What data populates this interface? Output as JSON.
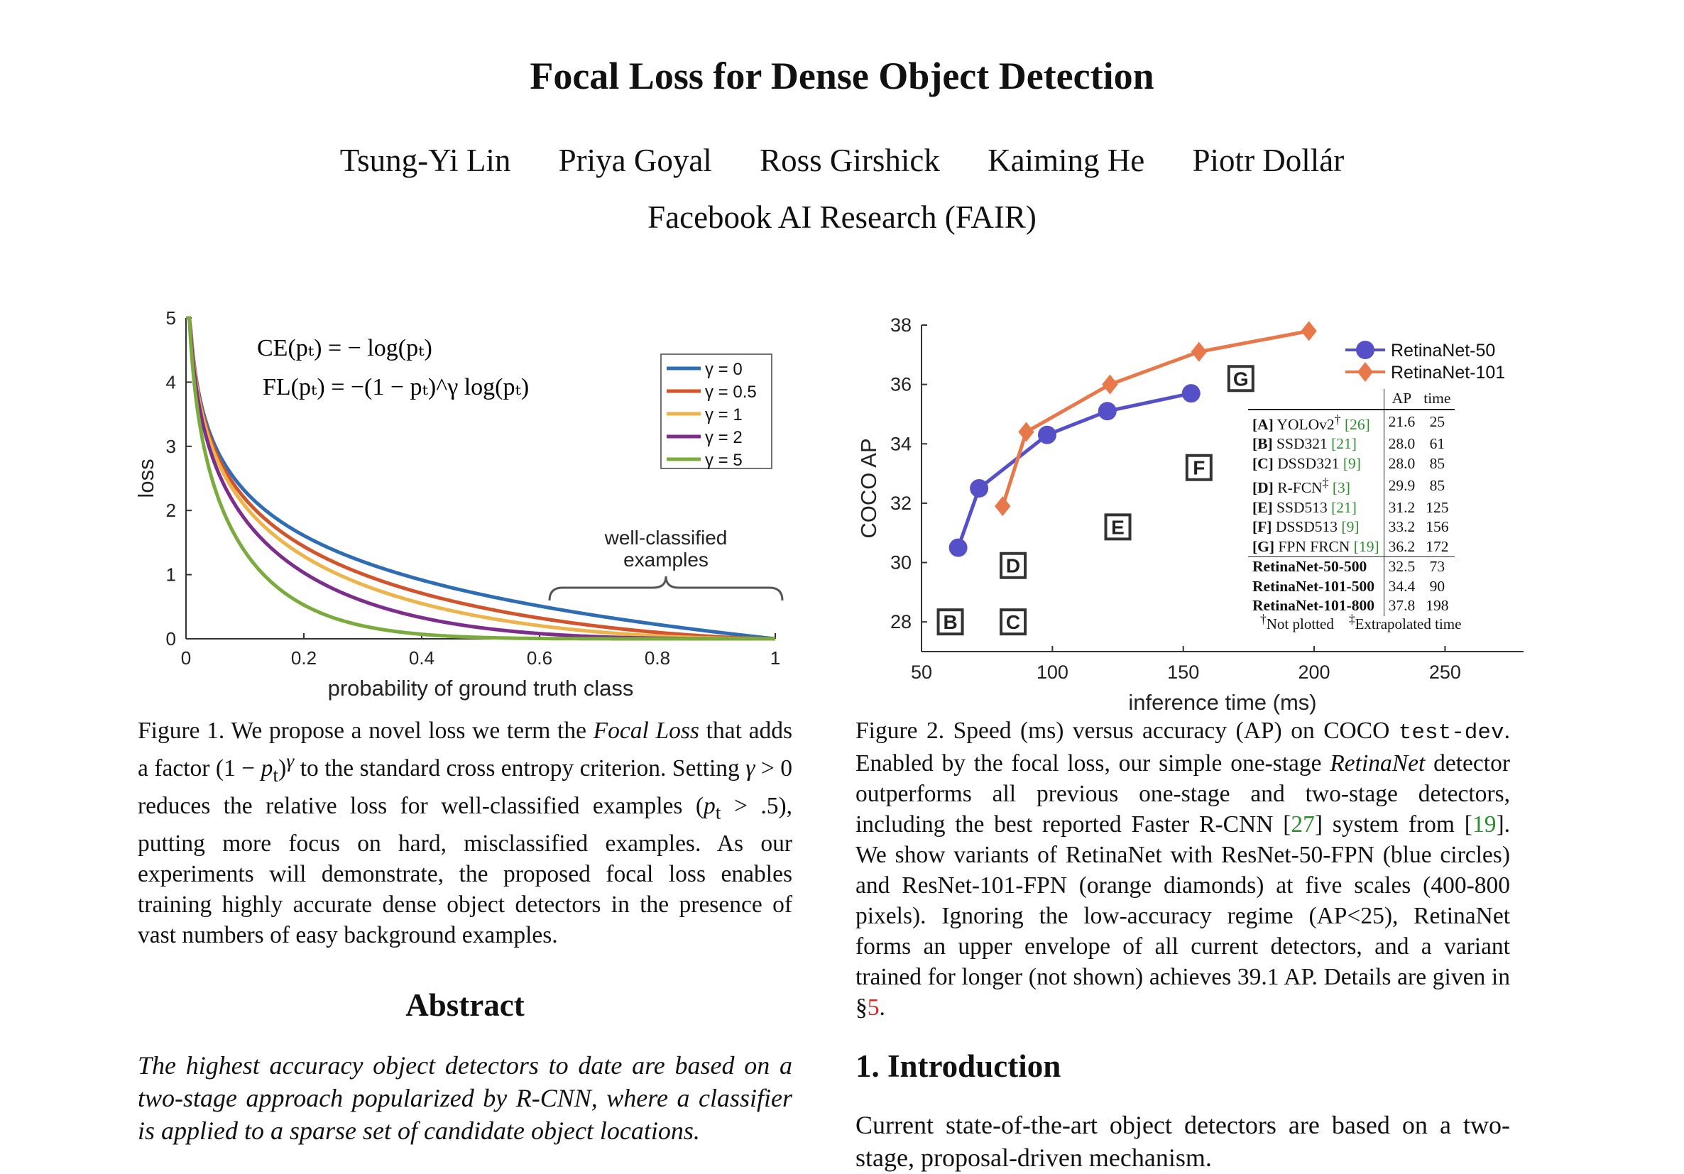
{
  "title": "Focal Loss for Dense Object Detection",
  "authors": [
    "Tsung-Yi Lin",
    "Priya Goyal",
    "Ross Girshick",
    "Kaiming He",
    "Piotr Dollár"
  ],
  "affiliation": "Facebook AI Research (FAIR)",
  "figure1": {
    "eq_ce": "CE(pₜ) = − log(pₜ)",
    "eq_fl": "FL(pₜ) = −(1 − pₜ)^γ log(pₜ)",
    "annotation_line1": "well-classified",
    "annotation_line2": "examples",
    "caption_html": "Figure 1. We propose a novel loss we term the <i>Focal Loss</i> that adds a factor (1 − <i>p</i><sub>t</sub>)<sup><i>γ</i></sup> to the standard cross entropy criterion. Setting <i>γ</i> &gt; 0 reduces the relative loss for well-classified examples (<i>p</i><sub>t</sub> &gt; .5), putting more focus on hard, misclassified examples. As our experiments will demonstrate, the proposed focal loss enables training highly accurate dense object detectors in the presence of vast numbers of easy background examples."
  },
  "figure2": {
    "caption_html": "Figure 2. Speed (ms) versus accuracy (AP) on COCO <span class=\"mono\">test-dev</span>. Enabled by the focal loss, our simple one-stage <i>RetinaNet</i> detector outperforms all previous one-stage and two-stage detectors, including the best reported Faster R-CNN [<span class=\"ref-g\">27</span>] system from [<span class=\"ref-g\">19</span>]. We show variants of RetinaNet with ResNet-50-FPN (blue circles) and ResNet-101-FPN (orange diamonds) at five scales (400-800 pixels). Ignoring the low-accuracy regime (AP&lt;25), RetinaNet forms an upper envelope of all current detectors, and a variant trained for longer (not shown) achieves 39.1 AP. Details are given in §<span class=\"ref-r\">5</span>.",
    "table_header": [
      "AP",
      "time"
    ],
    "table_rows": [
      {
        "label": "[A] YOLOv2",
        "mark": "†",
        "ref": "[26]",
        "ap": "21.6",
        "time": "25"
      },
      {
        "label": "[B] SSD321",
        "mark": "",
        "ref": "[21]",
        "ap": "28.0",
        "time": "61"
      },
      {
        "label": "[C] DSSD321",
        "mark": "",
        "ref": "[9]",
        "ap": "28.0",
        "time": "85"
      },
      {
        "label": "[D] R-FCN",
        "mark": "‡",
        "ref": "[3]",
        "ap": "29.9",
        "time": "85"
      },
      {
        "label": "[E] SSD513",
        "mark": "",
        "ref": "[21]",
        "ap": "31.2",
        "time": "125"
      },
      {
        "label": "[F] DSSD513",
        "mark": "",
        "ref": "[9]",
        "ap": "33.2",
        "time": "156"
      },
      {
        "label": "[G] FPN FRCN",
        "mark": "",
        "ref": "[19]",
        "ap": "36.2",
        "time": "172"
      }
    ],
    "retina_rows": [
      {
        "label": "RetinaNet-50-500",
        "ap": "32.5",
        "time": "73"
      },
      {
        "label": "RetinaNet-101-500",
        "ap": "34.4",
        "time": "90"
      },
      {
        "label": "RetinaNet-101-800",
        "ap": "37.8",
        "time": "198"
      }
    ],
    "foot_not_plotted": "Not plotted",
    "foot_extrapolated": "Extrapolated time"
  },
  "abstract_heading": "Abstract",
  "abstract_text": "The highest accuracy object detectors to date are based on a two-stage approach popularized by R-CNN, where a classifier is applied to a sparse set of candidate object locations.",
  "intro_heading": "1. Introduction",
  "intro_text": "Current state-of-the-art object detectors are based on a two-stage, proposal-driven mechanism.",
  "chart_data": [
    {
      "type": "line",
      "title": "",
      "xlabel": "probability of ground truth class",
      "ylabel": "loss",
      "xlim": [
        0,
        1
      ],
      "ylim": [
        0,
        5
      ],
      "xticks": [
        "0",
        "0.2",
        "0.4",
        "0.6",
        "0.8",
        "1"
      ],
      "yticks": [
        "0",
        "1",
        "2",
        "3",
        "4",
        "5"
      ],
      "legend_position": "top-right",
      "series": [
        {
          "name": "γ = 0",
          "gamma": 0,
          "color": "#2e6db4"
        },
        {
          "name": "γ = 0.5",
          "gamma": 0.5,
          "color": "#d2542a"
        },
        {
          "name": "γ = 1",
          "gamma": 1,
          "color": "#ecb44a"
        },
        {
          "name": "γ = 2",
          "gamma": 2,
          "color": "#7d2e8c"
        },
        {
          "name": "γ = 5",
          "gamma": 5,
          "color": "#7aab3c"
        }
      ]
    },
    {
      "type": "scatter",
      "title": "",
      "xlabel": "inference time (ms)",
      "ylabel": "COCO AP",
      "xlim": [
        50,
        280
      ],
      "ylim": [
        27,
        38
      ],
      "xticks": [
        "50",
        "100",
        "150",
        "200",
        "250"
      ],
      "yticks": [
        "28",
        "30",
        "32",
        "34",
        "36",
        "38"
      ],
      "legend_position": "top-right",
      "series": [
        {
          "name": "RetinaNet-50",
          "color": "#5550c8",
          "marker": "circle",
          "points": [
            [
              64,
              30.5
            ],
            [
              72,
              32.5
            ],
            [
              98,
              34.3
            ],
            [
              121,
              35.1
            ],
            [
              153,
              35.7
            ]
          ]
        },
        {
          "name": "RetinaNet-101",
          "color": "#e8784a",
          "marker": "diamond",
          "points": [
            [
              81,
              31.9
            ],
            [
              90,
              34.4
            ],
            [
              122,
              36.0
            ],
            [
              156,
              37.1
            ],
            [
              198,
              37.8
            ]
          ]
        }
      ],
      "labeled_points": [
        {
          "label": "B",
          "x": 61,
          "y": 28.0
        },
        {
          "label": "C",
          "x": 85,
          "y": 28.0
        },
        {
          "label": "D",
          "x": 85,
          "y": 29.9
        },
        {
          "label": "E",
          "x": 125,
          "y": 31.2
        },
        {
          "label": "F",
          "x": 156,
          "y": 33.2
        },
        {
          "label": "G",
          "x": 172,
          "y": 36.2
        }
      ]
    }
  ]
}
